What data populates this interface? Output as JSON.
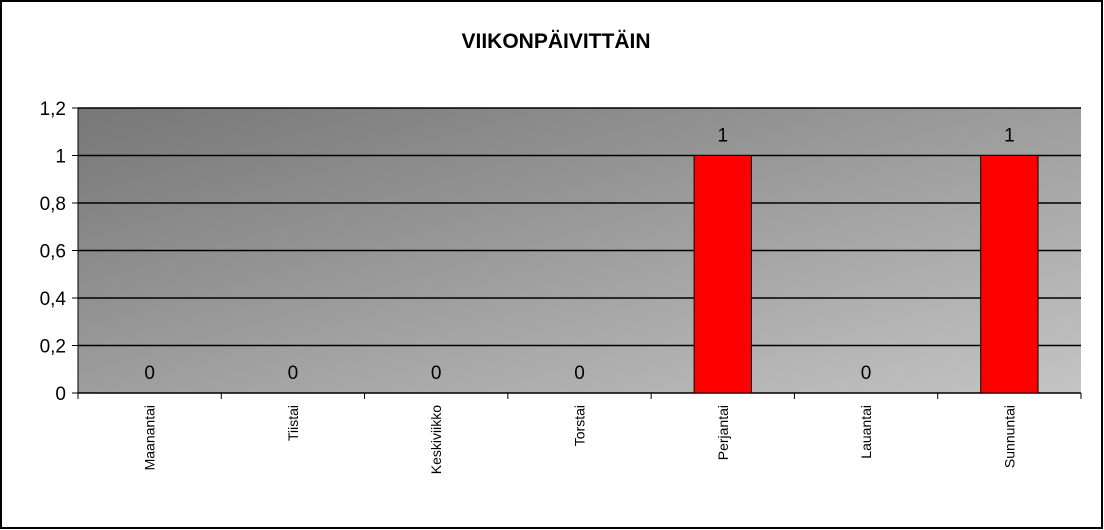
{
  "chart_data": {
    "type": "bar",
    "title": "VIIKONPÄIVITTÄIN",
    "categories": [
      "Maanantai",
      "Tiistai",
      "Keskiviikko",
      "Torstai",
      "Perjantai",
      "Lauantai",
      "Sunnuntai"
    ],
    "values": [
      0,
      0,
      0,
      0,
      1,
      0,
      1
    ],
    "color": "#ff0000",
    "ylim": [
      0,
      1.2
    ],
    "yticks": [
      0,
      {
        "value": 0.2,
        "label": "0,2"
      },
      {
        "value": 0.4,
        "label": "0,4"
      },
      {
        "value": 0.6,
        "label": "0,6"
      },
      {
        "value": 0.8,
        "label": "0,8"
      },
      1,
      {
        "value": 1.2,
        "label": "1,2"
      }
    ],
    "grid": true
  }
}
